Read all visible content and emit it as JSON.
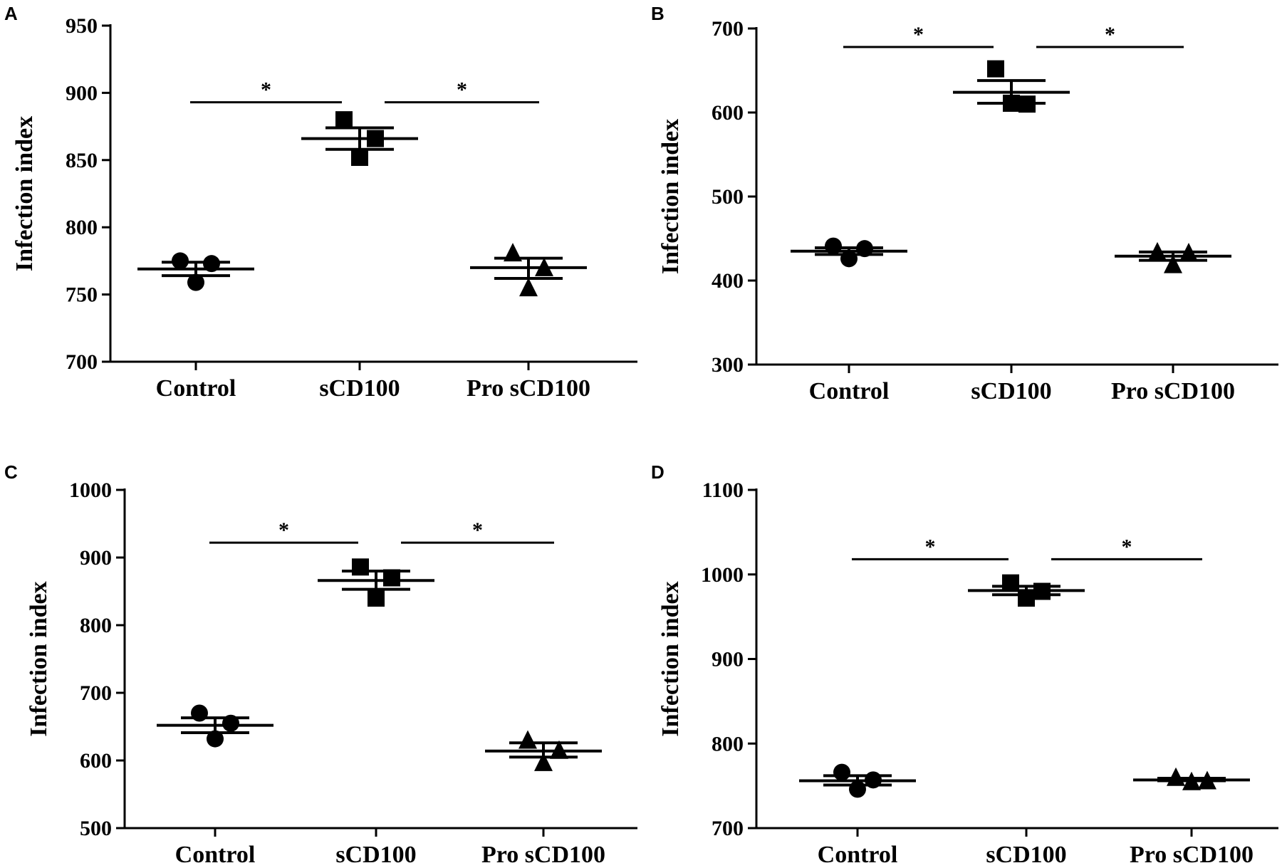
{
  "chart_data": [
    {
      "panel": "A",
      "type": "scatter",
      "ylabel": "Infection index",
      "ylim": [
        700,
        950
      ],
      "yticks": [
        700,
        750,
        800,
        850,
        900,
        950
      ],
      "categories": [
        "Control",
        "sCD100",
        "Pro sCD100"
      ],
      "markers": [
        "circle",
        "square",
        "triangle"
      ],
      "series": [
        {
          "name": "Control",
          "points": [
            775,
            773,
            759
          ],
          "mean": 769,
          "sem_upper": 774,
          "sem_lower": 764
        },
        {
          "name": "sCD100",
          "points": [
            880,
            866,
            852
          ],
          "mean": 866,
          "sem_upper": 874,
          "sem_lower": 858
        },
        {
          "name": "Pro sCD100",
          "points": [
            781,
            770,
            755
          ],
          "mean": 770,
          "sem_upper": 777,
          "sem_lower": 762
        }
      ],
      "significance": [
        {
          "from": 0,
          "to": 1,
          "y": 893,
          "label": "*"
        },
        {
          "from": 1,
          "to": 2,
          "y": 893,
          "label": "*"
        }
      ]
    },
    {
      "panel": "B",
      "type": "scatter",
      "ylabel": "Infection index",
      "ylim": [
        300,
        700
      ],
      "yticks": [
        300,
        400,
        500,
        600,
        700
      ],
      "categories": [
        "Control",
        "sCD100",
        "Pro sCD100"
      ],
      "markers": [
        "circle",
        "square",
        "triangle"
      ],
      "series": [
        {
          "name": "Control",
          "points": [
            441,
            438,
            426
          ],
          "mean": 435,
          "sem_upper": 439,
          "sem_lower": 431
        },
        {
          "name": "sCD100",
          "points": [
            652,
            610,
            611
          ],
          "mean": 624,
          "sem_upper": 638,
          "sem_lower": 611
        },
        {
          "name": "Pro sCD100",
          "points": [
            434,
            433,
            419
          ],
          "mean": 429,
          "sem_upper": 434,
          "sem_lower": 424
        }
      ],
      "significance": [
        {
          "from": 0,
          "to": 1,
          "y": 678,
          "label": "*"
        },
        {
          "from": 1,
          "to": 2,
          "y": 678,
          "label": "*"
        }
      ]
    },
    {
      "panel": "C",
      "type": "scatter",
      "ylabel": "Infection index",
      "ylim": [
        500,
        1000
      ],
      "yticks": [
        500,
        600,
        700,
        800,
        900,
        1000
      ],
      "categories": [
        "Control",
        "sCD100",
        "Pro sCD100"
      ],
      "markers": [
        "circle",
        "square",
        "triangle"
      ],
      "series": [
        {
          "name": "Control",
          "points": [
            670,
            655,
            632
          ],
          "mean": 652,
          "sem_upper": 663,
          "sem_lower": 641
        },
        {
          "name": "sCD100",
          "points": [
            886,
            870,
            840
          ],
          "mean": 866,
          "sem_upper": 880,
          "sem_lower": 853
        },
        {
          "name": "Pro sCD100",
          "points": [
            630,
            615,
            597
          ],
          "mean": 614,
          "sem_upper": 626,
          "sem_lower": 605
        }
      ],
      "significance": [
        {
          "from": 0,
          "to": 1,
          "y": 922,
          "label": "*"
        },
        {
          "from": 1,
          "to": 2,
          "y": 922,
          "label": "*"
        }
      ]
    },
    {
      "panel": "D",
      "type": "scatter",
      "ylabel": "Infection index",
      "ylim": [
        700,
        1100
      ],
      "yticks": [
        700,
        800,
        900,
        1000,
        1100
      ],
      "categories": [
        "Control",
        "sCD100",
        "Pro sCD100"
      ],
      "markers": [
        "circle",
        "square",
        "triangle"
      ],
      "series": [
        {
          "name": "Control",
          "points": [
            766,
            757,
            746
          ],
          "mean": 756,
          "sem_upper": 762,
          "sem_lower": 751
        },
        {
          "name": "sCD100",
          "points": [
            990,
            980,
            972
          ],
          "mean": 981,
          "sem_upper": 986,
          "sem_lower": 976
        },
        {
          "name": "Pro sCD100",
          "points": [
            760,
            756,
            755
          ],
          "mean": 757,
          "sem_upper": 759,
          "sem_lower": 756
        }
      ],
      "significance": [
        {
          "from": 0,
          "to": 1,
          "y": 1018,
          "label": "*"
        },
        {
          "from": 1,
          "to": 2,
          "y": 1018,
          "label": "*"
        }
      ]
    }
  ]
}
